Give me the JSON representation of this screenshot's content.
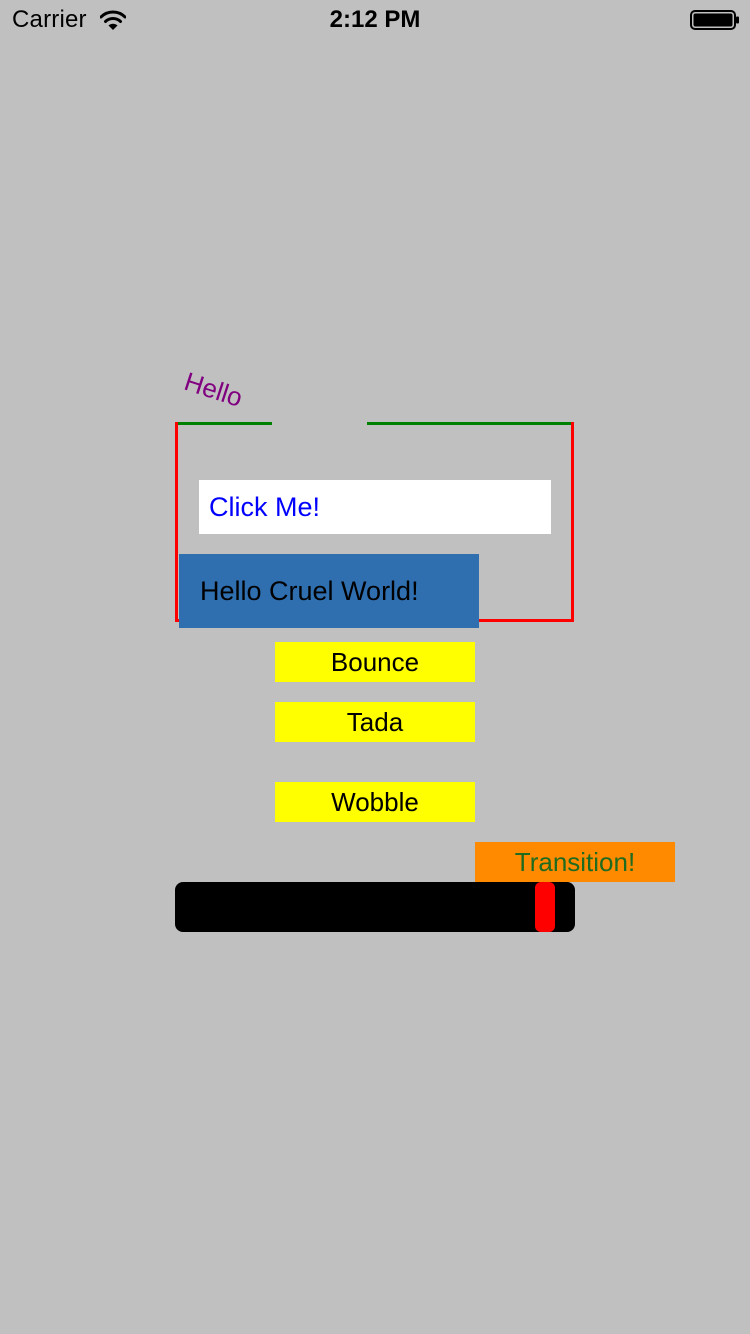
{
  "status_bar": {
    "carrier": "Carrier",
    "time": "2:12 PM",
    "wifi_icon": "wifi-icon",
    "battery_icon": "battery-icon"
  },
  "hello_label": "Hello",
  "frame": {
    "top_border_color": "#008000",
    "side_border_color": "#ff0000"
  },
  "click_me": {
    "label": "Click Me!",
    "text_color": "#0000ff"
  },
  "cruel_world": {
    "label": "Hello Cruel World!",
    "background": "#2f6fb0"
  },
  "animation_buttons": {
    "bounce": "Bounce",
    "tada": "Tada",
    "wobble": "Wobble",
    "background": "#ffff00"
  },
  "transition_button": {
    "label": "Transition!",
    "background": "#ff8a00",
    "text_color": "#1f6b1f"
  },
  "progress": {
    "value": 0.925,
    "track_color": "#000000",
    "thumb_color": "#ff0000"
  }
}
